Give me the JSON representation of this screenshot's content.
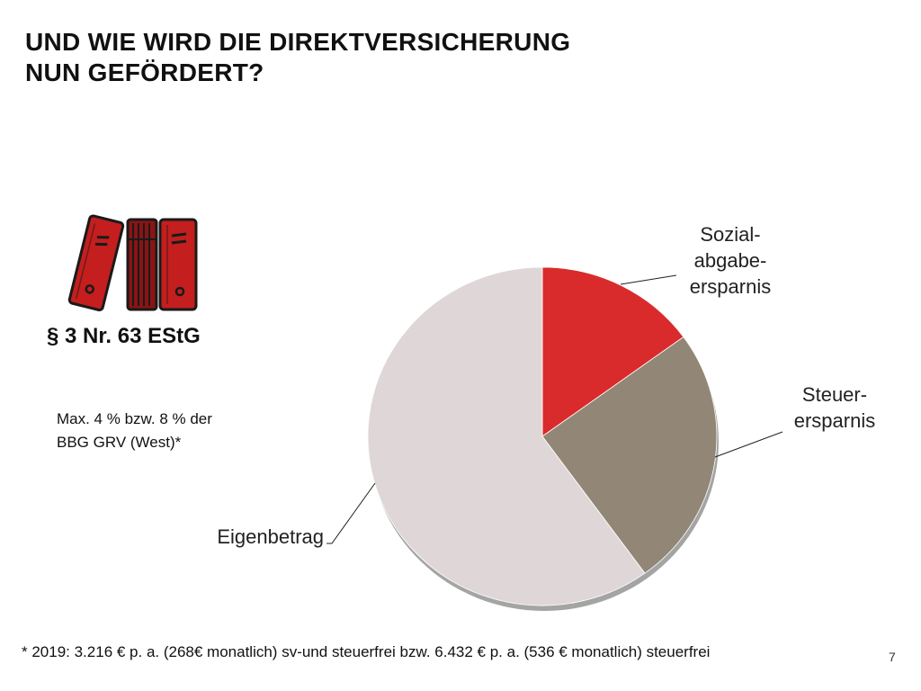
{
  "header": {
    "title_line1": "UND WIE WIRD DIE DIREKTVERSICHERUNG",
    "title_line2": "NUN GEFÖRDERT?"
  },
  "side": {
    "law": "§ 3 Nr. 63 EStG",
    "note_line1": "Max. 4 % bzw. 8 % der",
    "note_line2": "BBG GRV (West)*",
    "binder_icon": "binders-icon"
  },
  "chart_data": {
    "type": "pie",
    "slices": [
      {
        "label": "Sozial-\nabgabe-\nersparnis",
        "value": 15,
        "color": "#d92b2b"
      },
      {
        "label": "Steuer-\nersparnis",
        "value": 25,
        "color": "#928676"
      },
      {
        "label": "Eigenbetrag",
        "value": 60,
        "color": "#dfd7d7"
      }
    ]
  },
  "footer": {
    "footnote": "* 2019: 3.216 € p. a. (268€ monatlich) sv-und steuerfrei bzw. 6.432 € p. a. (536 € monatlich) steuerfrei",
    "page_number": "7"
  }
}
